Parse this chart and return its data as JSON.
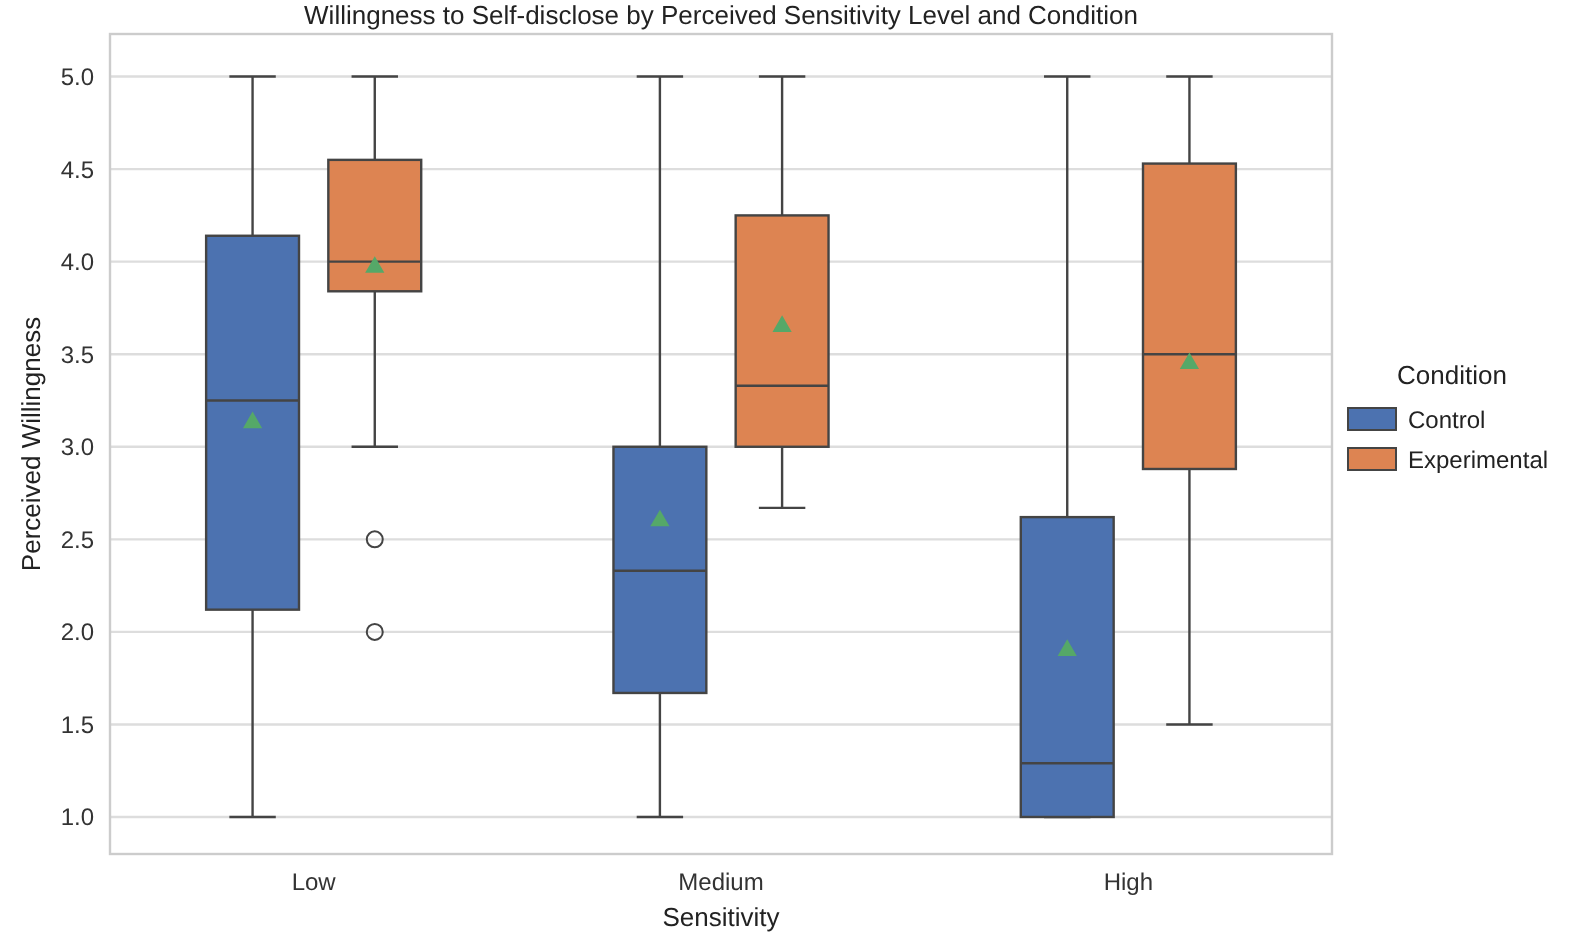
{
  "chart_data": {
    "type": "box",
    "title": "Willingness to Self-disclose by Perceived Sensitivity Level and Condition",
    "xlabel": "Sensitivity",
    "ylabel": "Perceived Willingness",
    "legend_title": "Condition",
    "categories": [
      "Low",
      "Medium",
      "High"
    ],
    "series": [
      {
        "name": "Control",
        "color": "#4c72b0",
        "boxes": [
          {
            "low": 1.0,
            "q1": 2.12,
            "median": 3.25,
            "q3": 4.14,
            "high": 5.0,
            "mean": 3.13
          },
          {
            "low": 1.0,
            "q1": 1.67,
            "median": 2.33,
            "q3": 3.0,
            "high": 5.0,
            "mean": 2.6
          },
          {
            "low": 1.0,
            "q1": 1.0,
            "median": 1.29,
            "q3": 2.62,
            "high": 5.0,
            "mean": 1.9
          }
        ]
      },
      {
        "name": "Experimental",
        "color": "#dd8452",
        "boxes": [
          {
            "low": 3.0,
            "q1": 3.84,
            "median": 4.0,
            "q3": 4.55,
            "high": 5.0,
            "mean": 3.97,
            "outliers": [
              2.5,
              2.0
            ]
          },
          {
            "low": 2.67,
            "q1": 3.0,
            "median": 3.33,
            "q3": 4.25,
            "high": 5.0,
            "mean": 3.65
          },
          {
            "low": 1.5,
            "q1": 2.88,
            "median": 3.5,
            "q3": 4.53,
            "high": 5.0,
            "mean": 3.45
          }
        ]
      }
    ],
    "ylim": [
      0.8,
      5.23
    ],
    "yticks": [
      {
        "value": 1,
        "label": "1.0"
      },
      {
        "value": 1.5,
        "label": "1.5"
      },
      {
        "value": 2,
        "label": "2.0"
      },
      {
        "value": 2.5,
        "label": "2.5"
      },
      {
        "value": 3,
        "label": "3.0"
      },
      {
        "value": 3.5,
        "label": "3.5"
      },
      {
        "value": 4,
        "label": "4.0"
      },
      {
        "value": 4.5,
        "label": "4.5"
      },
      {
        "value": 5,
        "label": "5.0"
      }
    ],
    "grid": "y",
    "legend": "right"
  }
}
